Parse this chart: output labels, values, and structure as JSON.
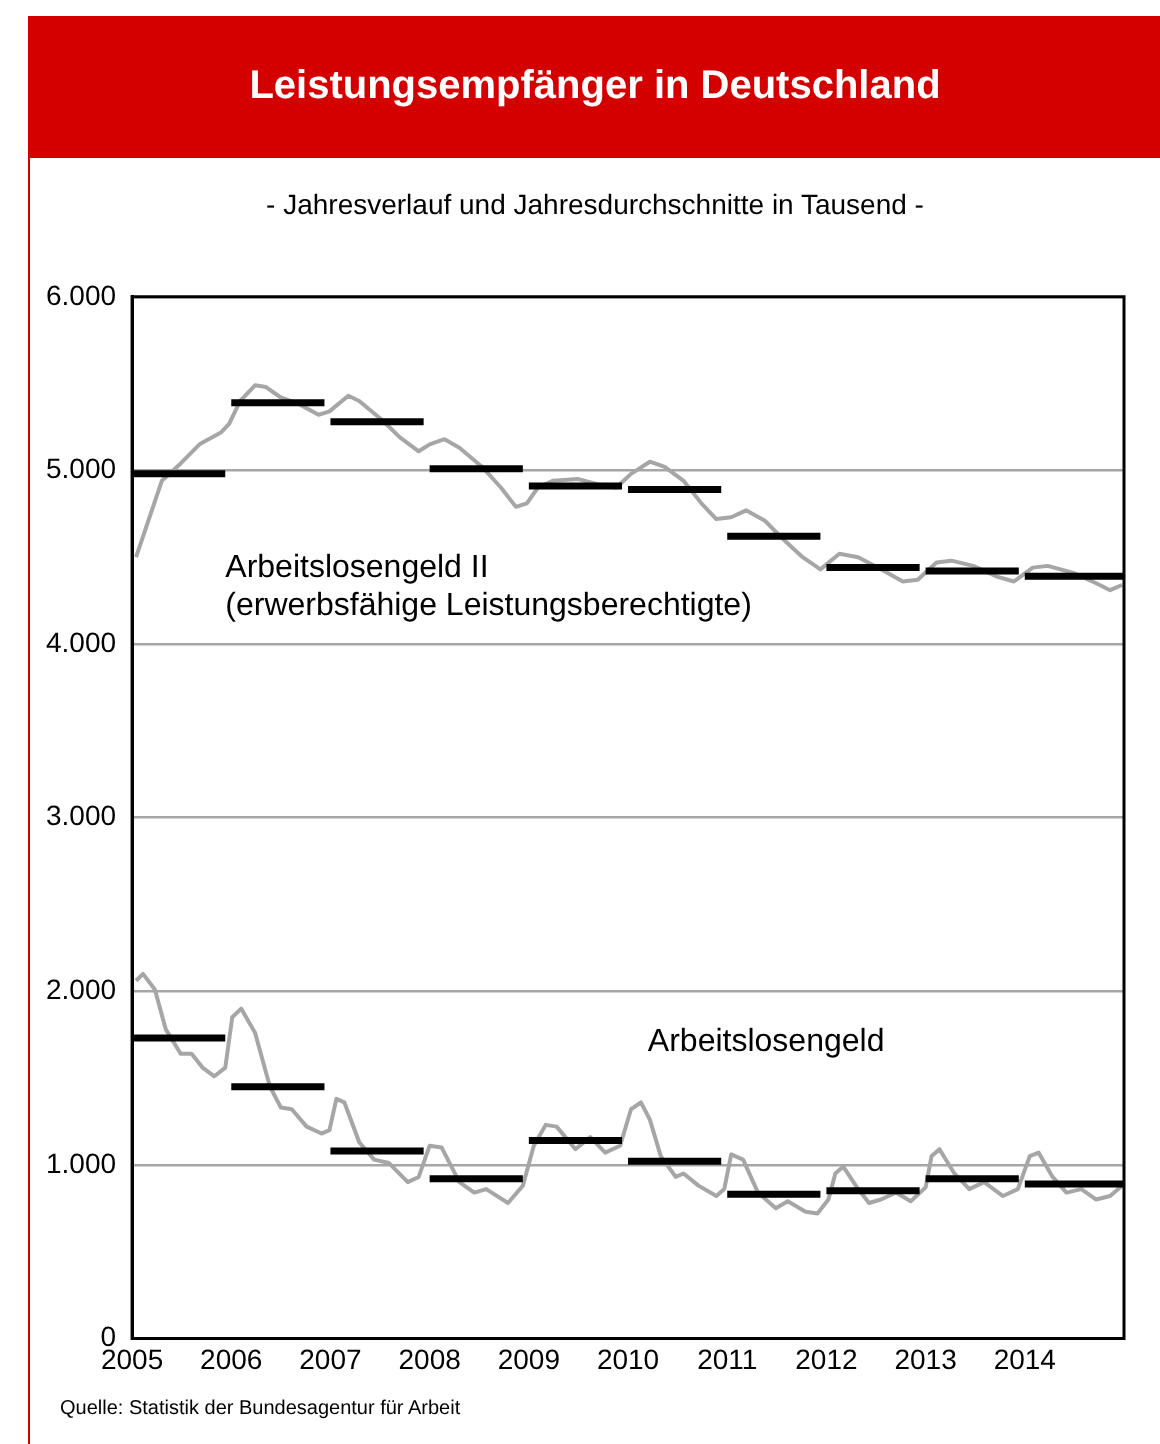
{
  "chart_data": {
    "type": "line",
    "title": "Leistungsempfänger in Deutschland",
    "subtitle": "- Jahresverlauf und Jahresdurchschnitte in Tausend -",
    "annotations": [
      "Quelle: Statistik der Bundesagentur für Arbeit"
    ],
    "xlim": [
      2005,
      2015
    ],
    "xticks": [
      2005,
      2006,
      2007,
      2008,
      2009,
      2010,
      2011,
      2012,
      2013,
      2014
    ],
    "ylim": [
      0,
      6000
    ],
    "yticks": [
      {
        "value": 0,
        "label": "0"
      },
      {
        "value": 1000,
        "label": "1.000"
      },
      {
        "value": 2000,
        "label": "2.000"
      },
      {
        "value": 3000,
        "label": "3.000"
      },
      {
        "value": 4000,
        "label": "4.000"
      },
      {
        "value": 5000,
        "label": "5.000"
      },
      {
        "value": 6000,
        "label": "6.000"
      }
    ],
    "grid": "y",
    "legend": false,
    "marker": "none",
    "line_style": "solid",
    "series": [
      {
        "name": "Arbeitslosengeld II\n(erwerbsfähige Leistungsberechtigte)",
        "color": "#a6a6a6",
        "x": [
          2005.04,
          2005.3,
          2005.49,
          2005.68,
          2005.9,
          2005.98,
          2006.09,
          2006.24,
          2006.35,
          2006.5,
          2006.69,
          2006.88,
          2006.99,
          2007.18,
          2007.29,
          2007.52,
          2007.7,
          2007.89,
          2008.0,
          2008.15,
          2008.3,
          2008.53,
          2008.72,
          2008.87,
          2008.98,
          2009.09,
          2009.24,
          2009.5,
          2009.69,
          2009.88,
          2010.03,
          2010.22,
          2010.37,
          2010.56,
          2010.74,
          2010.89,
          2011.04,
          2011.19,
          2011.38,
          2011.57,
          2011.76,
          2011.94,
          2012.13,
          2012.32,
          2012.55,
          2012.77,
          2012.92,
          2013.11,
          2013.26,
          2013.48,
          2013.71,
          2013.89,
          2014.08,
          2014.23,
          2014.49,
          2014.72,
          2014.86,
          2014.98
        ],
        "values": [
          4500,
          4940,
          5040,
          5150,
          5220,
          5270,
          5400,
          5490,
          5480,
          5420,
          5380,
          5320,
          5340,
          5430,
          5400,
          5290,
          5190,
          5110,
          5150,
          5180,
          5130,
          5020,
          4900,
          4790,
          4810,
          4900,
          4940,
          4950,
          4920,
          4900,
          4980,
          5050,
          5020,
          4940,
          4810,
          4720,
          4730,
          4770,
          4710,
          4600,
          4500,
          4430,
          4520,
          4500,
          4430,
          4360,
          4370,
          4470,
          4480,
          4450,
          4390,
          4360,
          4440,
          4450,
          4410,
          4350,
          4310,
          4340
        ]
      },
      {
        "type": "step",
        "color": "#000000",
        "x": [
          2005,
          2006,
          2007,
          2008,
          2009,
          2010,
          2011,
          2012,
          2013,
          2014,
          2015
        ],
        "values": [
          4980,
          5390,
          5280,
          5010,
          4910,
          4890,
          4620,
          4440,
          4420,
          4390,
          4390
        ]
      },
      {
        "name": "Arbeitslosengeld",
        "color": "#a6a6a6",
        "x": [
          2005.04,
          2005.11,
          2005.23,
          2005.34,
          2005.49,
          2005.6,
          2005.71,
          2005.83,
          2005.94,
          2006.01,
          2006.1,
          2006.24,
          2006.39,
          2006.5,
          2006.61,
          2006.76,
          2006.91,
          2006.99,
          2007.06,
          2007.14,
          2007.29,
          2007.44,
          2007.59,
          2007.78,
          2007.89,
          2008.0,
          2008.12,
          2008.3,
          2008.45,
          2008.57,
          2008.79,
          2008.94,
          2009.05,
          2009.17,
          2009.28,
          2009.47,
          2009.62,
          2009.77,
          2009.92,
          2010.03,
          2010.13,
          2010.22,
          2010.33,
          2010.48,
          2010.56,
          2010.71,
          2010.89,
          2010.97,
          2011.04,
          2011.16,
          2011.31,
          2011.49,
          2011.61,
          2011.79,
          2011.91,
          2012.02,
          2012.09,
          2012.17,
          2012.32,
          2012.43,
          2012.55,
          2012.7,
          2012.85,
          2013.0,
          2013.06,
          2013.14,
          2013.29,
          2013.44,
          2013.59,
          2013.78,
          2013.93,
          2014.05,
          2014.14,
          2014.28,
          2014.42,
          2014.57,
          2014.72,
          2014.86,
          2014.98
        ],
        "values": [
          2060,
          2100,
          2010,
          1780,
          1640,
          1640,
          1560,
          1510,
          1560,
          1850,
          1900,
          1760,
          1450,
          1330,
          1320,
          1220,
          1180,
          1200,
          1380,
          1360,
          1130,
          1030,
          1010,
          900,
          930,
          1110,
          1100,
          900,
          840,
          860,
          780,
          880,
          1110,
          1230,
          1220,
          1090,
          1160,
          1070,
          1110,
          1320,
          1360,
          1260,
          1050,
          930,
          950,
          880,
          820,
          860,
          1060,
          1030,
          840,
          750,
          790,
          730,
          720,
          800,
          950,
          990,
          860,
          780,
          800,
          840,
          790,
          870,
          1050,
          1090,
          950,
          860,
          900,
          820,
          860,
          1050,
          1070,
          930,
          840,
          860,
          800,
          820,
          880
        ]
      },
      {
        "type": "step",
        "color": "#000000",
        "x": [
          2005,
          2006,
          2007,
          2008,
          2009,
          2010,
          2011,
          2012,
          2013,
          2014,
          2015
        ],
        "values": [
          1730,
          1450,
          1080,
          920,
          1140,
          1020,
          830,
          850,
          920,
          890,
          890
        ]
      }
    ]
  }
}
